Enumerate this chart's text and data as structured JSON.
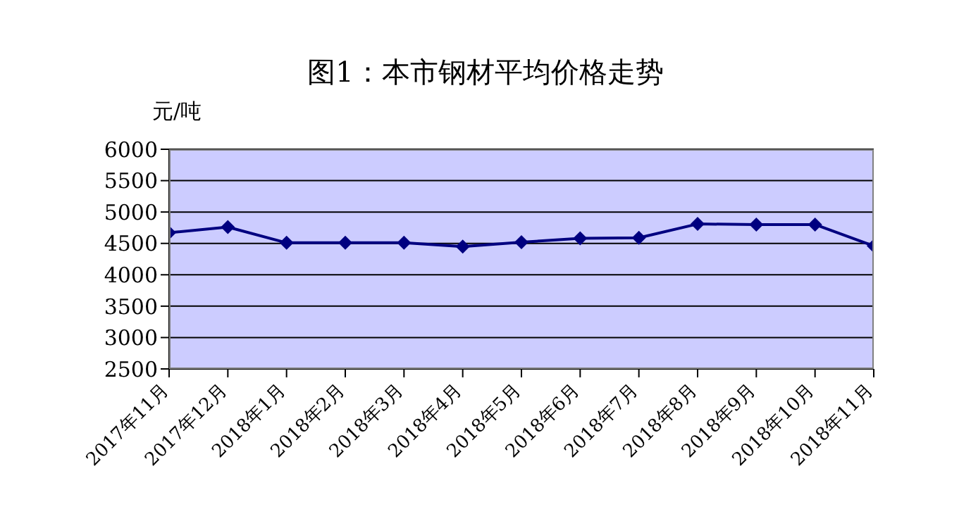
{
  "chart_data": {
    "type": "line",
    "title": "图1：本市钢材平均价格走势",
    "ylabel": "元/吨",
    "categories": [
      "2017年11月",
      "2017年12月",
      "2018年1月",
      "2018年2月",
      "2018年3月",
      "2018年4月",
      "2018年5月",
      "2018年6月",
      "2018年7月",
      "2018年8月",
      "2018年9月",
      "2018年10月",
      "2018年11月"
    ],
    "series": [
      {
        "color": "#000080",
        "values": [
          4670,
          4760,
          4510,
          4510,
          4510,
          4450,
          4520,
          4580,
          4590,
          4810,
          4800,
          4800,
          4460
        ]
      }
    ],
    "ylim": [
      2500,
      6000
    ],
    "yticks": [
      2500,
      3000,
      3500,
      4000,
      4500,
      5000,
      5500,
      6000
    ],
    "grid": "y",
    "marker": "diamond"
  }
}
